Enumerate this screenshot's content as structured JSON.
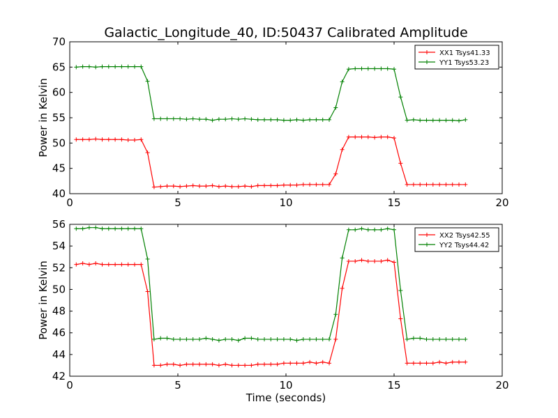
{
  "title": "Galactic_Longitude_40, ID:50437 Calibrated Amplitude",
  "colors": {
    "red": "#ff0000",
    "green": "#008000"
  },
  "chart_data": [
    {
      "type": "line",
      "xlabel": "",
      "ylabel": "Power in Kelvin",
      "xlim": [
        0,
        20
      ],
      "ylim": [
        40,
        70
      ],
      "xticks": [
        0,
        5,
        10,
        15,
        20
      ],
      "yticks": [
        40,
        45,
        50,
        55,
        60,
        65,
        70
      ],
      "grid": false,
      "legend_position": "top-right",
      "x": [
        0.3,
        0.6,
        0.9,
        1.2,
        1.5,
        1.8,
        2.1,
        2.4,
        2.7,
        3.0,
        3.3,
        3.6,
        3.9,
        4.2,
        4.5,
        4.8,
        5.1,
        5.4,
        5.7,
        6.0,
        6.3,
        6.6,
        6.9,
        7.2,
        7.5,
        7.8,
        8.1,
        8.4,
        8.7,
        9.0,
        9.3,
        9.6,
        9.9,
        10.2,
        10.5,
        10.8,
        11.1,
        11.4,
        11.7,
        12.0,
        12.3,
        12.6,
        12.9,
        13.2,
        13.5,
        13.8,
        14.1,
        14.4,
        14.7,
        15.0,
        15.3,
        15.6,
        15.9,
        16.2,
        16.5,
        16.8,
        17.1,
        17.4,
        17.7,
        18.0,
        18.3
      ],
      "series": [
        {
          "name": "XX1 Tsys41.33",
          "color": "#ff0000",
          "values": [
            50.7,
            50.7,
            50.7,
            50.8,
            50.7,
            50.7,
            50.7,
            50.7,
            50.6,
            50.6,
            50.7,
            48.1,
            41.3,
            41.4,
            41.5,
            41.5,
            41.4,
            41.5,
            41.6,
            41.5,
            41.5,
            41.6,
            41.4,
            41.5,
            41.4,
            41.4,
            41.5,
            41.4,
            41.6,
            41.6,
            41.6,
            41.6,
            41.7,
            41.7,
            41.7,
            41.8,
            41.8,
            41.8,
            41.8,
            41.8,
            43.9,
            48.7,
            51.2,
            51.2,
            51.2,
            51.2,
            51.1,
            51.2,
            51.2,
            51.0,
            46.0,
            41.8,
            41.8,
            41.8,
            41.8,
            41.8,
            41.8,
            41.8,
            41.8,
            41.8,
            41.8
          ]
        },
        {
          "name": "YY1 Tsys53.23",
          "color": "#008000",
          "values": [
            65.0,
            65.1,
            65.1,
            65.0,
            65.1,
            65.1,
            65.1,
            65.1,
            65.1,
            65.1,
            65.1,
            62.2,
            54.8,
            54.8,
            54.8,
            54.8,
            54.8,
            54.7,
            54.8,
            54.7,
            54.7,
            54.5,
            54.7,
            54.7,
            54.8,
            54.7,
            54.8,
            54.7,
            54.6,
            54.6,
            54.6,
            54.6,
            54.5,
            54.5,
            54.6,
            54.5,
            54.6,
            54.6,
            54.6,
            54.6,
            57.0,
            62.1,
            64.6,
            64.7,
            64.7,
            64.7,
            64.7,
            64.7,
            64.7,
            64.6,
            59.1,
            54.5,
            54.6,
            54.5,
            54.5,
            54.5,
            54.5,
            54.5,
            54.5,
            54.4,
            54.6
          ]
        }
      ]
    },
    {
      "type": "line",
      "xlabel": "Time (seconds)",
      "ylabel": "Power in Kelvin",
      "xlim": [
        0,
        20
      ],
      "ylim": [
        42,
        56
      ],
      "xticks": [
        0,
        5,
        10,
        15,
        20
      ],
      "yticks": [
        42,
        44,
        46,
        48,
        50,
        52,
        54,
        56
      ],
      "grid": false,
      "legend_position": "top-right",
      "x": [
        0.3,
        0.6,
        0.9,
        1.2,
        1.5,
        1.8,
        2.1,
        2.4,
        2.7,
        3.0,
        3.3,
        3.6,
        3.9,
        4.2,
        4.5,
        4.8,
        5.1,
        5.4,
        5.7,
        6.0,
        6.3,
        6.6,
        6.9,
        7.2,
        7.5,
        7.8,
        8.1,
        8.4,
        8.7,
        9.0,
        9.3,
        9.6,
        9.9,
        10.2,
        10.5,
        10.8,
        11.1,
        11.4,
        11.7,
        12.0,
        12.3,
        12.6,
        12.9,
        13.2,
        13.5,
        13.8,
        14.1,
        14.4,
        14.7,
        15.0,
        15.3,
        15.6,
        15.9,
        16.2,
        16.5,
        16.8,
        17.1,
        17.4,
        17.7,
        18.0,
        18.3
      ],
      "series": [
        {
          "name": "XX2 Tsys42.55",
          "color": "#ff0000",
          "values": [
            52.3,
            52.4,
            52.3,
            52.4,
            52.3,
            52.3,
            52.3,
            52.3,
            52.3,
            52.3,
            52.3,
            49.8,
            43.0,
            43.0,
            43.1,
            43.1,
            43.0,
            43.1,
            43.1,
            43.1,
            43.1,
            43.1,
            43.0,
            43.1,
            43.0,
            43.0,
            43.0,
            43.0,
            43.1,
            43.1,
            43.1,
            43.1,
            43.2,
            43.2,
            43.2,
            43.2,
            43.3,
            43.2,
            43.3,
            43.2,
            45.4,
            50.1,
            52.6,
            52.6,
            52.7,
            52.6,
            52.6,
            52.6,
            52.7,
            52.5,
            47.3,
            43.2,
            43.2,
            43.2,
            43.2,
            43.2,
            43.3,
            43.2,
            43.3,
            43.3,
            43.3
          ]
        },
        {
          "name": "YY2 Tsys44.42",
          "color": "#008000",
          "values": [
            55.6,
            55.6,
            55.7,
            55.7,
            55.6,
            55.6,
            55.6,
            55.6,
            55.6,
            55.6,
            55.6,
            52.8,
            45.4,
            45.5,
            45.5,
            45.4,
            45.4,
            45.4,
            45.4,
            45.4,
            45.5,
            45.4,
            45.3,
            45.4,
            45.4,
            45.3,
            45.5,
            45.5,
            45.4,
            45.4,
            45.4,
            45.4,
            45.4,
            45.4,
            45.3,
            45.4,
            45.4,
            45.4,
            45.4,
            45.4,
            47.7,
            52.9,
            55.5,
            55.5,
            55.6,
            55.5,
            55.5,
            55.5,
            55.6,
            55.5,
            49.9,
            45.4,
            45.5,
            45.5,
            45.4,
            45.4,
            45.4,
            45.4,
            45.4,
            45.4,
            45.4
          ]
        }
      ]
    }
  ]
}
